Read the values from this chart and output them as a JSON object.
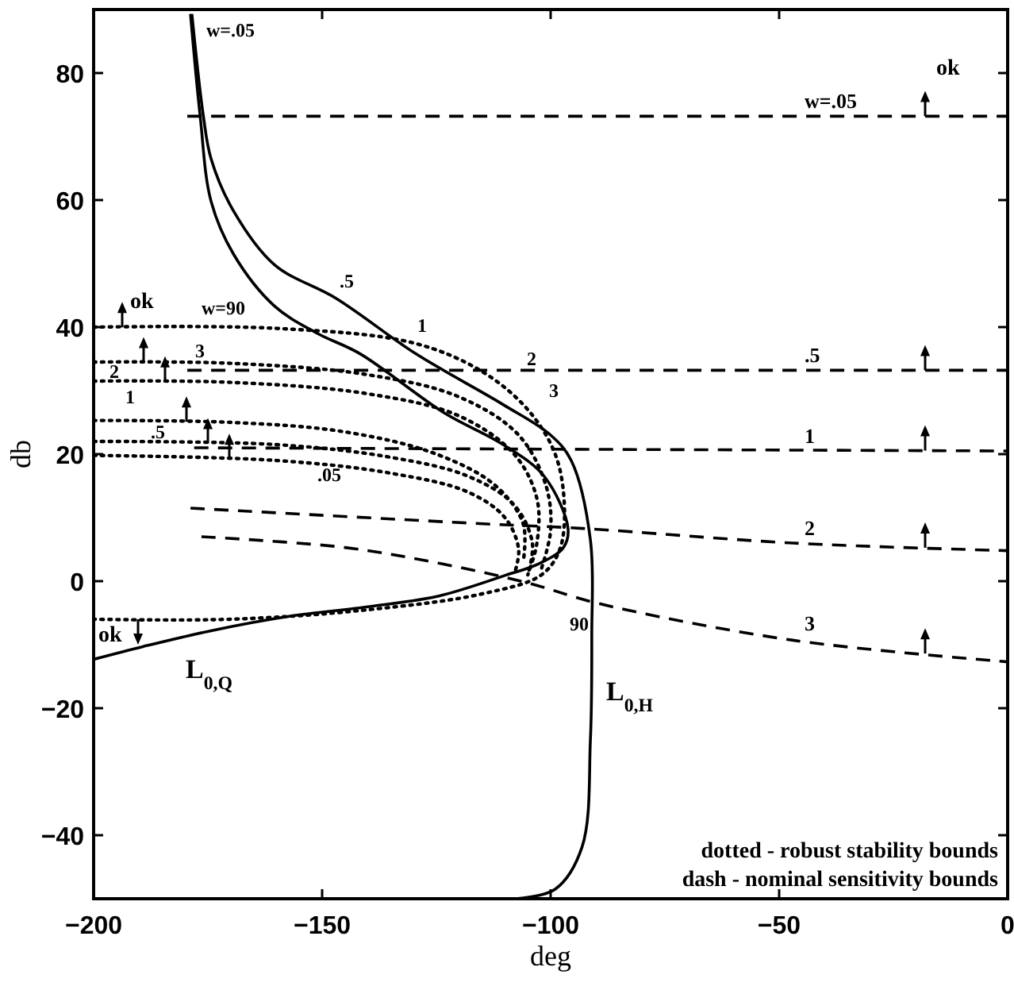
{
  "chart_data": {
    "type": "line",
    "xlabel": "deg",
    "ylabel": "db",
    "xlim": [
      -200,
      0
    ],
    "ylim": [
      -50,
      90
    ],
    "xticks": [
      -200,
      -150,
      -100,
      -50,
      0
    ],
    "yticks": [
      -40,
      -20,
      0,
      20,
      40,
      60,
      80
    ],
    "marker": "none",
    "grid": false,
    "series": [
      {
        "color": "#000000",
        "line_style": "solid",
        "x": [
          -178.5,
          -176,
          -174.3,
          -169.4,
          -160.4,
          -146.9,
          -129.5,
          -110.4,
          -100,
          -95.5,
          -91.3,
          -91,
          -91.3,
          -93.1,
          -99,
          -107.6
        ],
        "values": [
          89.3,
          73.3,
          66.5,
          58.3,
          49.8,
          44.5,
          35.8,
          27.8,
          23,
          19,
          6.5,
          -8.5,
          -25,
          -41.8,
          -48.5,
          -50
        ]
      },
      {
        "color": "#000000",
        "line_style": "solid",
        "x": [
          -178.8,
          -176.7,
          -174.3,
          -169.4,
          -160.4,
          -151,
          -141.7,
          -123.3,
          -110.4,
          -101.4,
          -96.2,
          -97.2,
          -102.4,
          -110.4,
          -124.3,
          -139.6,
          -156.9,
          -174.3,
          -189.2,
          -200
        ],
        "values": [
          89.3,
          73.3,
          59.8,
          51.5,
          43.3,
          39,
          35.8,
          26.5,
          21.5,
          16.5,
          8.3,
          5.3,
          2.8,
          0.8,
          -2.3,
          -4,
          -5.5,
          -7.8,
          -10.3,
          -12.3
        ]
      },
      {
        "color": "#000000",
        "line_style": "dashed",
        "x": [
          -179.5,
          0
        ],
        "values": [
          73.2,
          73.2
        ]
      },
      {
        "color": "#000000",
        "line_style": "dashed",
        "x": [
          -179.5,
          0
        ],
        "values": [
          33.2,
          33.2
        ]
      },
      {
        "color": "#000000",
        "line_style": "dashed",
        "x": [
          -178,
          0
        ],
        "values": [
          21,
          20.5
        ]
      },
      {
        "color": "#000000",
        "line_style": "dashed",
        "x": [
          -178.8,
          -113.9,
          -93,
          -47,
          0
        ],
        "values": [
          11.5,
          9,
          8.3,
          6,
          4.8
        ]
      },
      {
        "color": "#000000",
        "line_style": "dashed",
        "x": [
          -176.4,
          -145,
          -124.3,
          -104.9,
          -89.6,
          -47,
          0
        ],
        "values": [
          7,
          5.3,
          2.8,
          -0.3,
          -3.5,
          -9.3,
          -12.7
        ]
      },
      {
        "color": "#000000",
        "line_style": "dotted",
        "x": [
          -200,
          -160,
          -130,
          -115,
          -105,
          -99,
          -97,
          -98,
          -102,
          -115,
          -140,
          -170,
          -200
        ],
        "values": [
          40,
          39.8,
          37.5,
          33,
          27,
          20,
          12,
          5,
          1,
          -2,
          -4.5,
          -6,
          -6
        ]
      },
      {
        "color": "#000000",
        "line_style": "dotted",
        "x": [
          -200,
          -170,
          -140,
          -120,
          -107,
          -101,
          -100,
          -102
        ],
        "values": [
          34.5,
          34.3,
          32.5,
          29,
          23,
          15,
          8,
          2
        ]
      },
      {
        "color": "#000000",
        "line_style": "dotted",
        "x": [
          -200,
          -170,
          -140,
          -120,
          -108,
          -103,
          -103,
          -105
        ],
        "values": [
          31.5,
          31.3,
          29.5,
          26,
          20,
          13,
          6,
          1
        ]
      },
      {
        "color": "#000000",
        "line_style": "dotted",
        "x": [
          -200,
          -170,
          -145,
          -125,
          -112,
          -106,
          -106
        ],
        "values": [
          25.3,
          25,
          23.5,
          20,
          15,
          9,
          3
        ]
      },
      {
        "color": "#000000",
        "line_style": "dotted",
        "x": [
          -200,
          -160,
          -135,
          -118,
          -108,
          -104,
          -105
        ],
        "values": [
          22,
          21.5,
          19.5,
          16.5,
          12,
          6,
          1
        ]
      },
      {
        "color": "#000000",
        "line_style": "dotted",
        "x": [
          -200,
          -160,
          -135,
          -118,
          -110,
          -107,
          -108
        ],
        "values": [
          19.8,
          19,
          17,
          14,
          10,
          5,
          1
        ]
      }
    ],
    "annotations": [
      "w=.05",
      ".5",
      "1",
      "2",
      "3",
      "90",
      "L$_{0,Q}$",
      "L$_{0,H}$",
      "ok",
      "ok",
      "ok",
      "dotted - robust stability bounds",
      "dash - nominal sensitivity bounds",
      "w=.05",
      ".5",
      "1",
      "2",
      "3",
      "w=90",
      "3",
      "2",
      "1",
      ".5",
      ".05"
    ]
  }
}
